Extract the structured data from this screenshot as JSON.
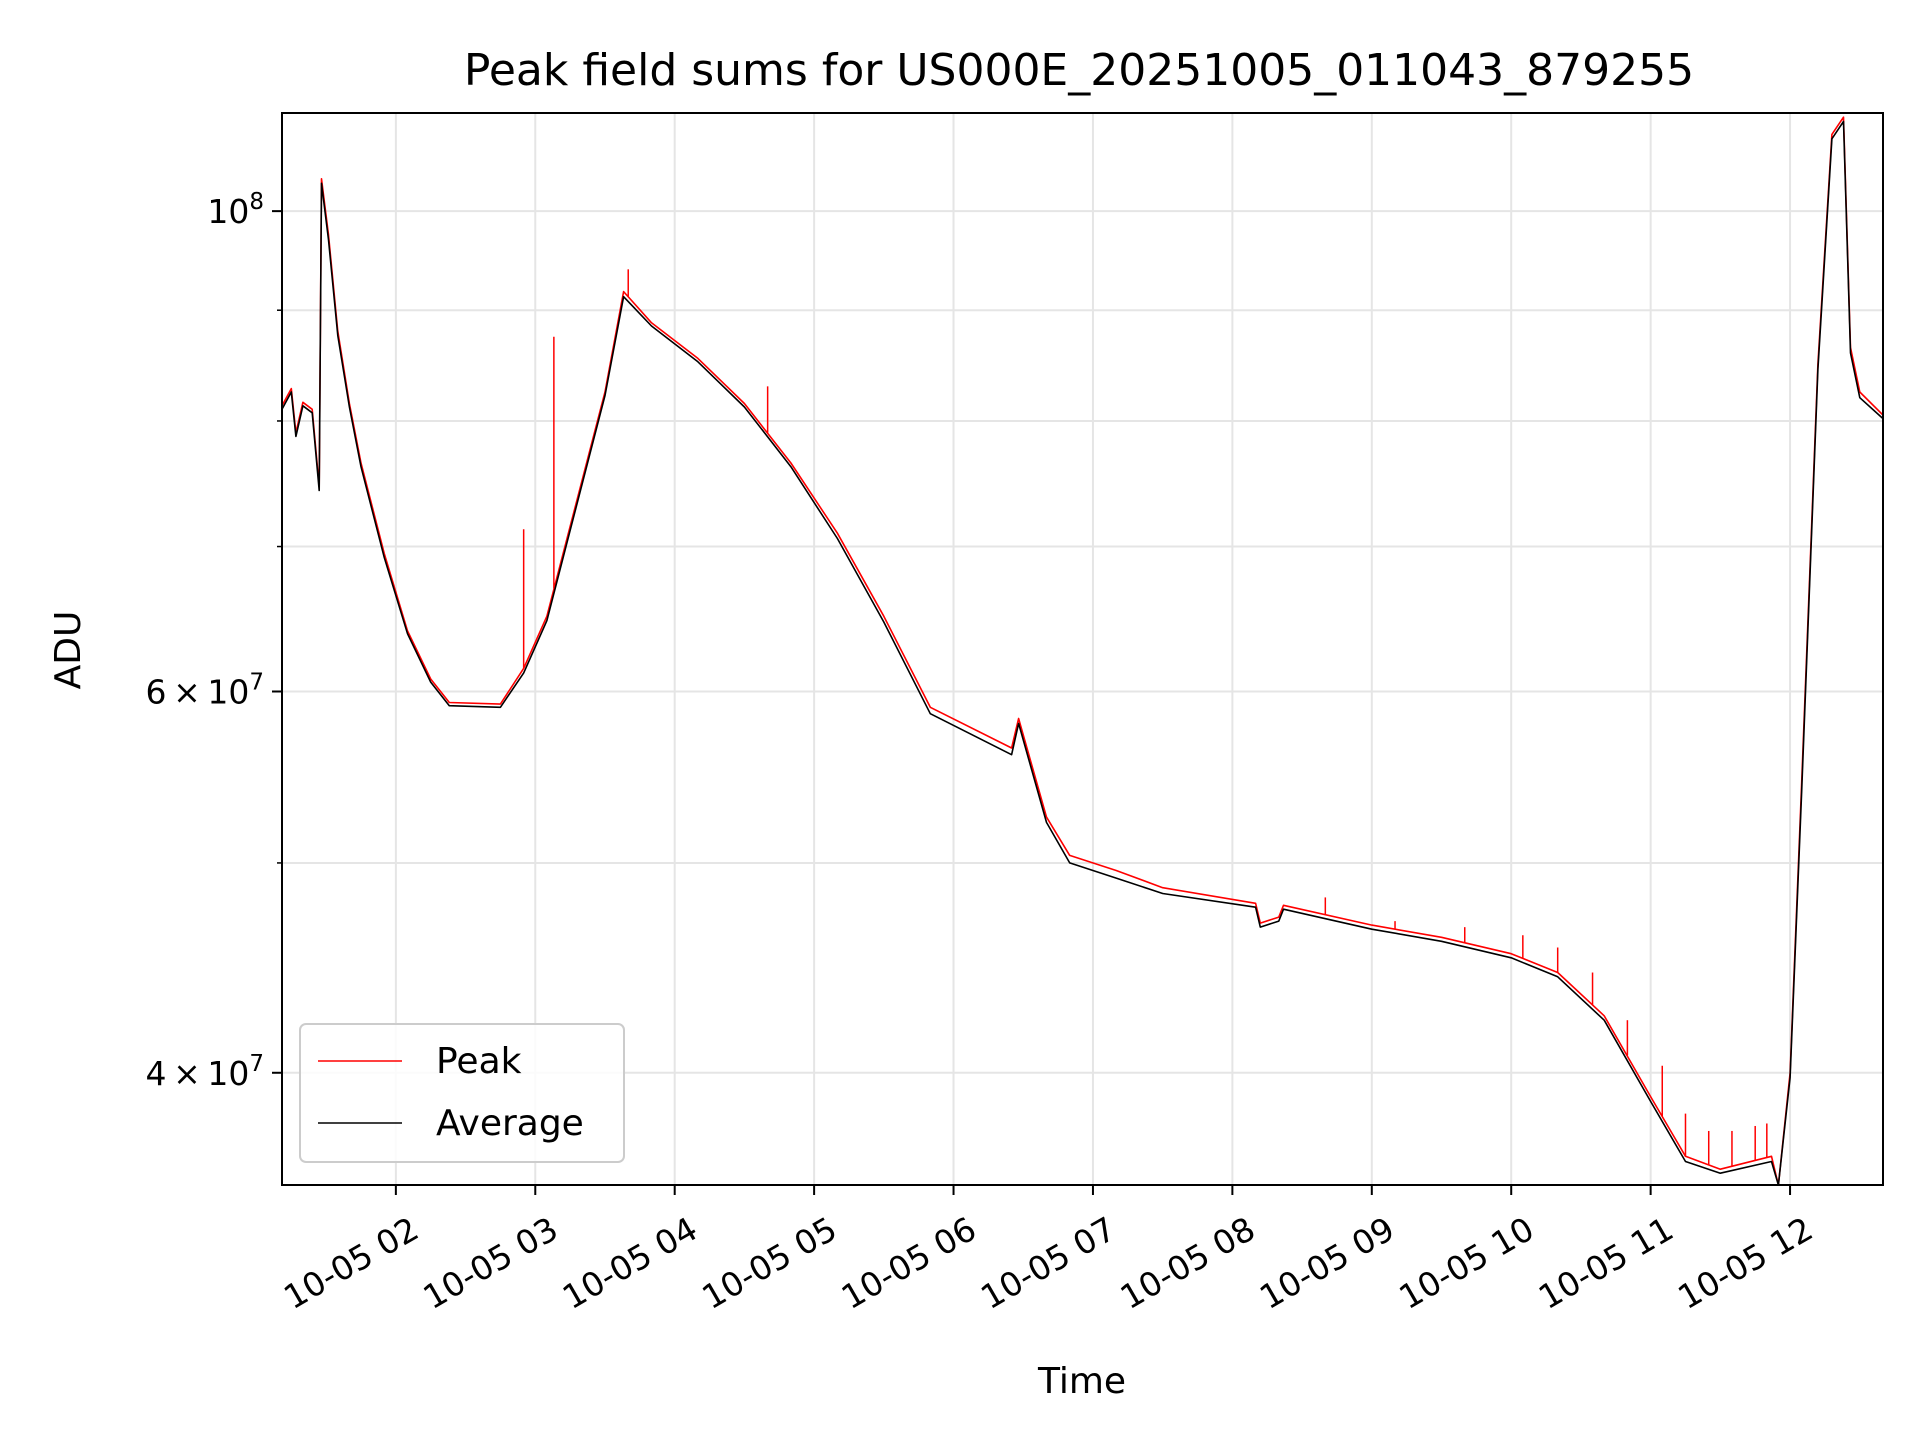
{
  "chart_data": {
    "type": "line",
    "title": "Peak field sums for US000E_20251005_011043_879255",
    "xlabel": "Time",
    "ylabel": "ADU",
    "yscale": "log",
    "xlim": [
      "2025-10-05T01:11",
      "2025-10-05T12:40"
    ],
    "ylim": [
      35500000,
      111000000
    ],
    "grid": true,
    "legend": "lower-left",
    "x_ticks": [
      {
        "t": "2025-10-05T02:00",
        "label": "10-05 02"
      },
      {
        "t": "2025-10-05T03:00",
        "label": "10-05 03"
      },
      {
        "t": "2025-10-05T04:00",
        "label": "10-05 04"
      },
      {
        "t": "2025-10-05T05:00",
        "label": "10-05 05"
      },
      {
        "t": "2025-10-05T06:00",
        "label": "10-05 06"
      },
      {
        "t": "2025-10-05T07:00",
        "label": "10-05 07"
      },
      {
        "t": "2025-10-05T08:00",
        "label": "10-05 08"
      },
      {
        "t": "2025-10-05T09:00",
        "label": "10-05 09"
      },
      {
        "t": "2025-10-05T10:00",
        "label": "10-05 10"
      },
      {
        "t": "2025-10-05T11:00",
        "label": "10-05 11"
      },
      {
        "t": "2025-10-05T12:00",
        "label": "10-05 12"
      }
    ],
    "y_major_ticks": [
      {
        "value": 100000000,
        "base": "10",
        "exp": "8"
      },
      {
        "value": 60000000,
        "mant": "6",
        "base": "10",
        "exp": "7"
      },
      {
        "value": 40000000,
        "mant": "4",
        "base": "10",
        "exp": "7"
      }
    ],
    "y_minor_ticks": [
      50000000,
      70000000,
      80000000,
      90000000
    ],
    "series": [
      {
        "name": "Peak",
        "color": "#ff0000",
        "points": [
          [
            "2025-10-05T01:11",
            81300000
          ],
          [
            "2025-10-05T01:15",
            82800000
          ],
          [
            "2025-10-05T01:17",
            79000000
          ],
          [
            "2025-10-05T01:20",
            81600000
          ],
          [
            "2025-10-05T01:24",
            81000000
          ],
          [
            "2025-10-05T01:27",
            74600000
          ],
          [
            "2025-10-05T01:28",
            103500000
          ],
          [
            "2025-10-05T01:31",
            97500000
          ],
          [
            "2025-10-05T01:35",
            88000000
          ],
          [
            "2025-10-05T01:40",
            81500000
          ],
          [
            "2025-10-05T01:45",
            76500000
          ],
          [
            "2025-10-05T01:55",
            69500000
          ],
          [
            "2025-10-05T02:05",
            64000000
          ],
          [
            "2025-10-05T02:15",
            60800000
          ],
          [
            "2025-10-05T02:23",
            59300000
          ],
          [
            "2025-10-05T02:45",
            59200000
          ],
          [
            "2025-10-05T02:55",
            61500000
          ],
          [
            "2025-10-05T03:05",
            65000000
          ],
          [
            "2025-10-05T03:15",
            71500000
          ],
          [
            "2025-10-05T03:30",
            82500000
          ],
          [
            "2025-10-05T03:38",
            91800000
          ],
          [
            "2025-10-05T03:50",
            88800000
          ],
          [
            "2025-10-05T04:10",
            85500000
          ],
          [
            "2025-10-05T04:30",
            81500000
          ],
          [
            "2025-10-05T04:50",
            76500000
          ],
          [
            "2025-10-05T05:10",
            71000000
          ],
          [
            "2025-10-05T05:30",
            65000000
          ],
          [
            "2025-10-05T05:50",
            59000000
          ],
          [
            "2025-10-05T06:25",
            56500000
          ],
          [
            "2025-10-05T06:28",
            58300000
          ],
          [
            "2025-10-05T06:40",
            52500000
          ],
          [
            "2025-10-05T06:50",
            50400000
          ],
          [
            "2025-10-05T07:10",
            49600000
          ],
          [
            "2025-10-05T07:30",
            48700000
          ],
          [
            "2025-10-05T08:10",
            47900000
          ],
          [
            "2025-10-05T08:12",
            46900000
          ],
          [
            "2025-10-05T08:20",
            47200000
          ],
          [
            "2025-10-05T08:22",
            47800000
          ],
          [
            "2025-10-05T09:00",
            46800000
          ],
          [
            "2025-10-05T09:30",
            46200000
          ],
          [
            "2025-10-05T10:00",
            45400000
          ],
          [
            "2025-10-05T10:20",
            44500000
          ],
          [
            "2025-10-05T10:40",
            42500000
          ],
          [
            "2025-10-05T11:00",
            39000000
          ],
          [
            "2025-10-05T11:15",
            36600000
          ],
          [
            "2025-10-05T11:30",
            36100000
          ],
          [
            "2025-10-05T11:52",
            36600000
          ],
          [
            "2025-10-05T11:55",
            35500000
          ],
          [
            "2025-10-05T12:00",
            40000000
          ],
          [
            "2025-10-05T12:05",
            54500000
          ],
          [
            "2025-10-05T12:12",
            85000000
          ],
          [
            "2025-10-05T12:18",
            108500000
          ],
          [
            "2025-10-05T12:23",
            110500000
          ],
          [
            "2025-10-05T12:26",
            86500000
          ],
          [
            "2025-10-05T12:30",
            82500000
          ],
          [
            "2025-10-05T12:40",
            80500000
          ]
        ],
        "spikes": [
          [
            "2025-10-05T02:55",
            71300000
          ],
          [
            "2025-10-05T03:08",
            87500000
          ],
          [
            "2025-10-05T03:40",
            94000000
          ],
          [
            "2025-10-05T04:40",
            83000000
          ],
          [
            "2025-10-05T08:40",
            48200000
          ],
          [
            "2025-10-05T09:10",
            47000000
          ],
          [
            "2025-10-05T09:40",
            46700000
          ],
          [
            "2025-10-05T10:05",
            46300000
          ],
          [
            "2025-10-05T10:20",
            45700000
          ],
          [
            "2025-10-05T10:35",
            44500000
          ],
          [
            "2025-10-05T10:50",
            42300000
          ],
          [
            "2025-10-05T11:05",
            40300000
          ],
          [
            "2025-10-05T11:15",
            38300000
          ],
          [
            "2025-10-05T11:25",
            37600000
          ],
          [
            "2025-10-05T11:35",
            37600000
          ],
          [
            "2025-10-05T11:45",
            37800000
          ],
          [
            "2025-10-05T11:50",
            37900000
          ]
        ]
      },
      {
        "name": "Average",
        "color": "#000000",
        "points": [
          [
            "2025-10-05T01:11",
            81000000
          ],
          [
            "2025-10-05T01:15",
            82500000
          ],
          [
            "2025-10-05T01:17",
            78700000
          ],
          [
            "2025-10-05T01:20",
            81300000
          ],
          [
            "2025-10-05T01:24",
            80700000
          ],
          [
            "2025-10-05T01:27",
            74300000
          ],
          [
            "2025-10-05T01:28",
            103000000
          ],
          [
            "2025-10-05T01:31",
            97000000
          ],
          [
            "2025-10-05T01:35",
            87600000
          ],
          [
            "2025-10-05T01:40",
            81200000
          ],
          [
            "2025-10-05T01:45",
            76200000
          ],
          [
            "2025-10-05T01:55",
            69200000
          ],
          [
            "2025-10-05T02:05",
            63800000
          ],
          [
            "2025-10-05T02:15",
            60600000
          ],
          [
            "2025-10-05T02:23",
            59100000
          ],
          [
            "2025-10-05T02:45",
            59000000
          ],
          [
            "2025-10-05T02:55",
            61200000
          ],
          [
            "2025-10-05T03:05",
            64700000
          ],
          [
            "2025-10-05T03:15",
            71200000
          ],
          [
            "2025-10-05T03:30",
            82200000
          ],
          [
            "2025-10-05T03:38",
            91300000
          ],
          [
            "2025-10-05T03:50",
            88500000
          ],
          [
            "2025-10-05T04:10",
            85200000
          ],
          [
            "2025-10-05T04:30",
            81200000
          ],
          [
            "2025-10-05T04:50",
            76200000
          ],
          [
            "2025-10-05T05:10",
            70600000
          ],
          [
            "2025-10-05T05:30",
            64600000
          ],
          [
            "2025-10-05T05:50",
            58600000
          ],
          [
            "2025-10-05T06:25",
            56100000
          ],
          [
            "2025-10-05T06:28",
            58000000
          ],
          [
            "2025-10-05T06:40",
            52200000
          ],
          [
            "2025-10-05T06:50",
            50000000
          ],
          [
            "2025-10-05T07:10",
            49200000
          ],
          [
            "2025-10-05T07:30",
            48400000
          ],
          [
            "2025-10-05T08:10",
            47700000
          ],
          [
            "2025-10-05T08:12",
            46700000
          ],
          [
            "2025-10-05T08:20",
            47000000
          ],
          [
            "2025-10-05T08:22",
            47600000
          ],
          [
            "2025-10-05T09:00",
            46600000
          ],
          [
            "2025-10-05T09:30",
            46000000
          ],
          [
            "2025-10-05T10:00",
            45200000
          ],
          [
            "2025-10-05T10:20",
            44300000
          ],
          [
            "2025-10-05T10:40",
            42300000
          ],
          [
            "2025-10-05T11:00",
            38800000
          ],
          [
            "2025-10-05T11:15",
            36400000
          ],
          [
            "2025-10-05T11:30",
            35950000
          ],
          [
            "2025-10-05T11:52",
            36400000
          ],
          [
            "2025-10-05T11:55",
            35500000
          ],
          [
            "2025-10-05T12:00",
            39800000
          ],
          [
            "2025-10-05T12:05",
            54000000
          ],
          [
            "2025-10-05T12:12",
            84500000
          ],
          [
            "2025-10-05T12:18",
            108000000
          ],
          [
            "2025-10-05T12:23",
            110000000
          ],
          [
            "2025-10-05T12:26",
            86000000
          ],
          [
            "2025-10-05T12:30",
            82000000
          ],
          [
            "2025-10-05T12:40",
            80200000
          ]
        ]
      }
    ]
  }
}
